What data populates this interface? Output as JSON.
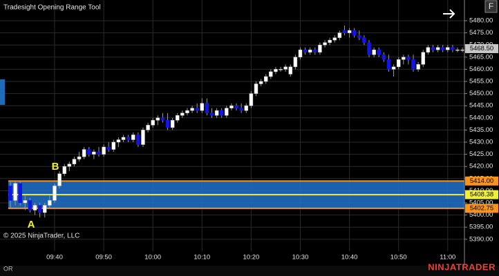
{
  "chart_data": {
    "type": "candlestick",
    "title": "Tradesight Opening Range Tool",
    "copyright": "© 2025 NinjaTrader, LLC",
    "panel_label": "OR",
    "brand": "NINJATRADER",
    "button": "F",
    "annotations": [
      "A",
      "B"
    ],
    "up_color": "#ffffff",
    "down_color": "#1414e6",
    "categories": [
      null,
      null,
      null,
      null,
      null,
      null,
      null,
      null,
      null,
      "09:40",
      null,
      null,
      null,
      null,
      null,
      null,
      null,
      null,
      null,
      "09:50",
      null,
      null,
      null,
      null,
      null,
      null,
      null,
      null,
      null,
      "10:00",
      null,
      null,
      null,
      null,
      null,
      null,
      null,
      null,
      null,
      "10:10",
      null,
      null,
      null,
      null,
      null,
      null,
      null,
      null,
      null,
      "10:20",
      null,
      null,
      null,
      null,
      null,
      null,
      null,
      null,
      null,
      "10:30",
      null,
      null,
      null,
      null,
      null,
      null,
      null,
      null,
      null,
      "10:40",
      null,
      null,
      null,
      null,
      null,
      null,
      null,
      null,
      null,
      "10:50",
      null,
      null,
      null,
      null,
      null,
      null,
      null,
      null,
      null,
      "11:00",
      null,
      null,
      null
    ],
    "open": [
      5412,
      5406,
      5413,
      5405,
      5406,
      5402,
      5404,
      5401,
      5404,
      5406,
      5412,
      5417,
      5420,
      5421,
      5423,
      5424,
      5427,
      5425,
      5426,
      5425,
      5428,
      5427,
      5430,
      5431,
      5432,
      5431,
      5433,
      5429,
      5435,
      5437,
      5439,
      5440,
      5439,
      5436,
      5439,
      5441,
      5442,
      5443,
      5444,
      5443,
      5446,
      5442,
      5441,
      5443,
      5441,
      5444,
      5445,
      5444,
      5443,
      5445,
      5450,
      5454,
      5455,
      5457,
      5459,
      5460,
      5460,
      5458,
      5461,
      5465,
      5468,
      5467,
      5468,
      5467,
      5470,
      5471,
      5472,
      5473,
      5476,
      5475,
      5476,
      5474,
      5473,
      5471,
      5466,
      5468,
      5466,
      5464,
      5460,
      5461,
      5464,
      5465,
      5464,
      5460,
      5462,
      5467,
      5469,
      5468,
      5469,
      5468,
      5469,
      5468,
      5468
    ],
    "high": [
      5414,
      5414,
      5414,
      5408,
      5407,
      5405,
      5405,
      5405,
      5408,
      5413,
      5418,
      5421,
      5422,
      5424,
      5426,
      5428,
      5428,
      5427,
      5428,
      5429,
      5430,
      5431,
      5432,
      5433,
      5433,
      5434,
      5434,
      5436,
      5438,
      5440,
      5441,
      5442,
      5442,
      5440,
      5442,
      5443,
      5444,
      5445,
      5446,
      5448,
      5448,
      5444,
      5444,
      5444,
      5445,
      5446,
      5446,
      5446,
      5446,
      5451,
      5455,
      5456,
      5458,
      5460,
      5461,
      5461,
      5462,
      5462,
      5466,
      5469,
      5469,
      5469,
      5469,
      5471,
      5472,
      5473,
      5474,
      5476,
      5478,
      5477,
      5477,
      5476,
      5474,
      5472,
      5469,
      5469,
      5467,
      5466,
      5462,
      5465,
      5466,
      5466,
      5466,
      5463,
      5468,
      5470,
      5470,
      5470,
      5470,
      5470,
      5470,
      5469,
      5469
    ],
    "low": [
      5403,
      5404,
      5404,
      5402,
      5401,
      5400,
      5399,
      5399,
      5403,
      5405,
      5411,
      5416,
      5418,
      5420,
      5422,
      5423,
      5424,
      5423,
      5424,
      5424,
      5426,
      5426,
      5428,
      5430,
      5430,
      5430,
      5428,
      5428,
      5434,
      5436,
      5437,
      5438,
      5435,
      5435,
      5438,
      5440,
      5441,
      5442,
      5442,
      5442,
      5441,
      5440,
      5440,
      5440,
      5440,
      5443,
      5443,
      5442,
      5442,
      5444,
      5449,
      5453,
      5454,
      5456,
      5458,
      5459,
      5459,
      5457,
      5460,
      5464,
      5466,
      5466,
      5466,
      5466,
      5469,
      5470,
      5471,
      5472,
      5474,
      5473,
      5473,
      5472,
      5470,
      5465,
      5465,
      5465,
      5463,
      5459,
      5457,
      5460,
      5462,
      5462,
      5459,
      5459,
      5461,
      5466,
      5467,
      5467,
      5467,
      5467,
      5467,
      5467,
      5467
    ],
    "close": [
      5406,
      5413,
      5405,
      5406,
      5402,
      5404,
      5401,
      5404,
      5406,
      5412,
      5417,
      5420,
      5421,
      5423,
      5424,
      5427,
      5425,
      5426,
      5425,
      5428,
      5427,
      5430,
      5431,
      5432,
      5431,
      5433,
      5429,
      5435,
      5437,
      5439,
      5440,
      5439,
      5436,
      5439,
      5441,
      5442,
      5443,
      5444,
      5443,
      5446,
      5442,
      5441,
      5443,
      5441,
      5444,
      5445,
      5444,
      5443,
      5445,
      5450,
      5454,
      5455,
      5457,
      5459,
      5460,
      5460,
      5461,
      5461,
      5465,
      5468,
      5467,
      5468,
      5467,
      5470,
      5471,
      5472,
      5473,
      5475,
      5475,
      5476,
      5474,
      5473,
      5471,
      5466,
      5468,
      5466,
      5464,
      5460,
      5461,
      5464,
      5465,
      5464,
      5460,
      5462,
      5467,
      5469,
      5468,
      5469,
      5468,
      5469,
      5468,
      5468,
      5468
    ],
    "ylim": [
      5379.15,
      5488.52
    ],
    "yticks": [
      {
        "value": 5390,
        "label": "5390.00"
      },
      {
        "value": 5395,
        "label": "5395.00"
      },
      {
        "value": 5400,
        "label": "5400.00"
      },
      {
        "value": 5405,
        "label": "5405.00"
      },
      {
        "value": 5410,
        "label": "5410.00"
      },
      {
        "value": 5415,
        "label": "5415.00"
      },
      {
        "value": 5420,
        "label": "5420.00"
      },
      {
        "value": 5425,
        "label": "5425.00"
      },
      {
        "value": 5430,
        "label": "5430.00"
      },
      {
        "value": 5435,
        "label": "5435.00"
      },
      {
        "value": 5440,
        "label": "5440.00"
      },
      {
        "value": 5445,
        "label": "5445.00"
      },
      {
        "value": 5450,
        "label": "5450.00"
      },
      {
        "value": 5455,
        "label": "5455.00"
      },
      {
        "value": 5460,
        "label": "5460.00"
      },
      {
        "value": 5465,
        "label": "5465.00"
      },
      {
        "value": 5470,
        "label": "5470.00"
      },
      {
        "value": 5475,
        "label": "5475.00"
      },
      {
        "value": 5480,
        "label": "5480.00"
      }
    ],
    "grid": true,
    "opening_range": {
      "high": 5414,
      "low": 5402.75,
      "mid": 5408.38,
      "fill": "#1f6cc0",
      "edge_color": "#f7941d",
      "mid_color": "#f0f03c"
    },
    "price_markers": [
      {
        "value": 5468.5,
        "label": "5468.50",
        "color": "#c8c8c8"
      },
      {
        "value": 5414,
        "label": "5414.00",
        "color": "#f7941d"
      },
      {
        "value": 5408.38,
        "label": "5408.38",
        "color": "#f0f03c"
      },
      {
        "value": 5402.75,
        "label": "5402.75",
        "color": "#f7941d"
      }
    ]
  }
}
